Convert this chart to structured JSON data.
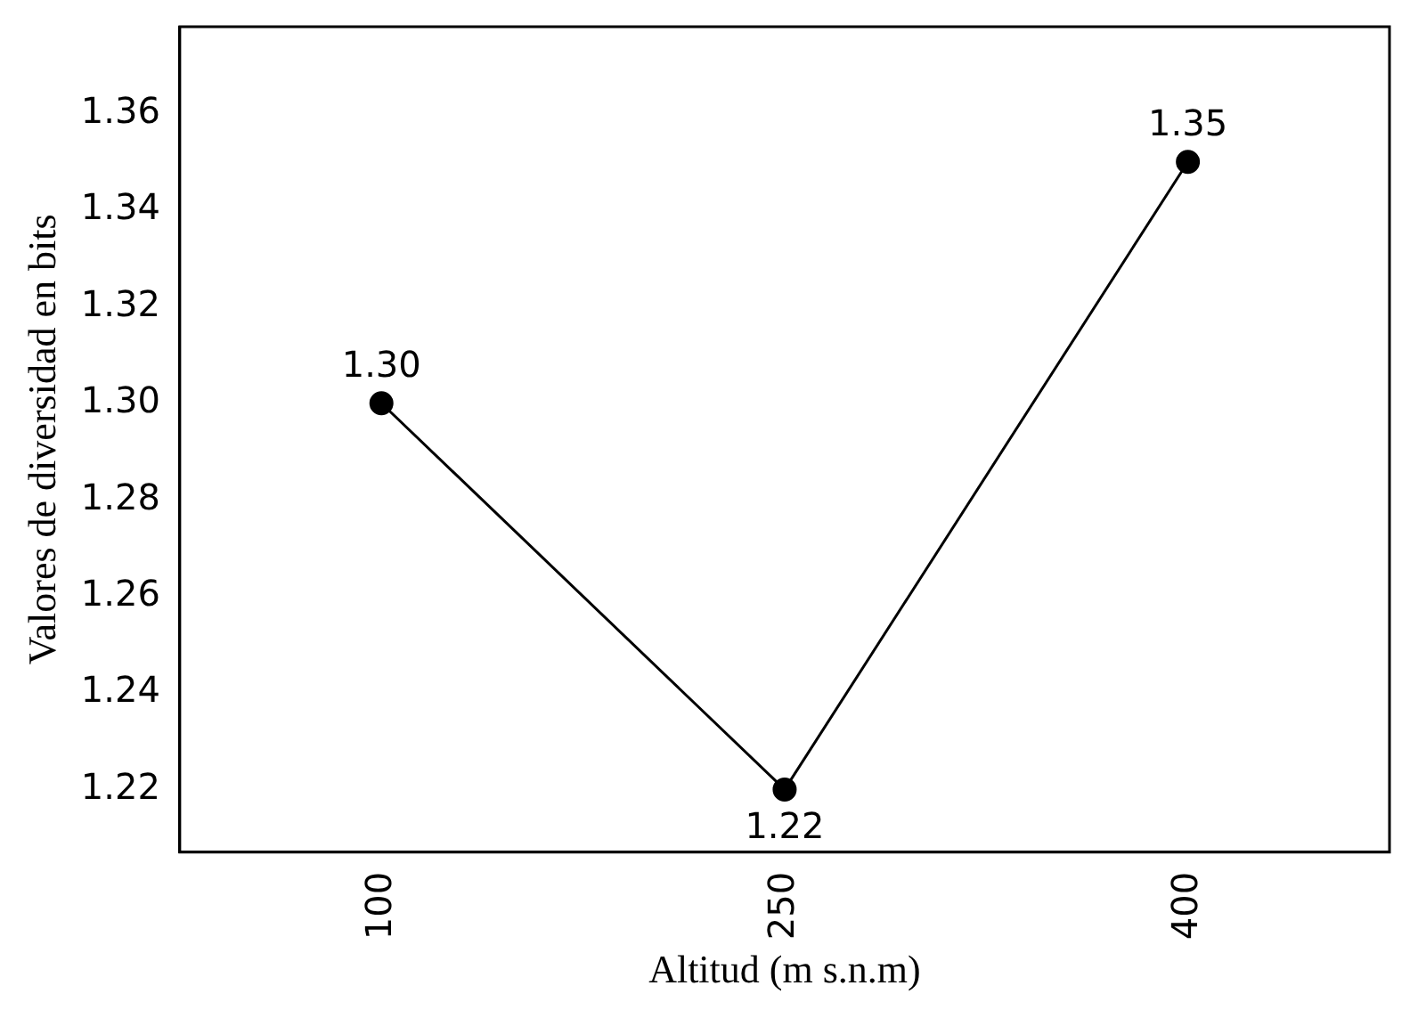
{
  "chart_data": {
    "type": "line",
    "xlabel": "Altitud (m s.n.m)",
    "ylabel": "Valores de diversidad en bits",
    "categories": [
      "100",
      "250",
      "400"
    ],
    "series": [
      {
        "color": "#000000",
        "values": [
          1.3,
          1.22,
          1.35
        ],
        "value_labels": [
          "1.30",
          "1.22",
          "1.35"
        ]
      }
    ],
    "ylim": [
      1.207,
      1.378
    ],
    "yticks": [
      {
        "value": 1.22,
        "label": "1.22"
      },
      {
        "value": 1.24,
        "label": "1.24"
      },
      {
        "value": 1.26,
        "label": "1.26"
      },
      {
        "value": 1.28,
        "label": "1.28"
      },
      {
        "value": 1.3,
        "label": "1.30"
      },
      {
        "value": 1.32,
        "label": "1.32"
      },
      {
        "value": 1.34,
        "label": "1.34"
      },
      {
        "value": 1.36,
        "label": "1.36"
      }
    ],
    "grid": false,
    "legend": false,
    "marker": "circle",
    "line_style": "solid"
  }
}
